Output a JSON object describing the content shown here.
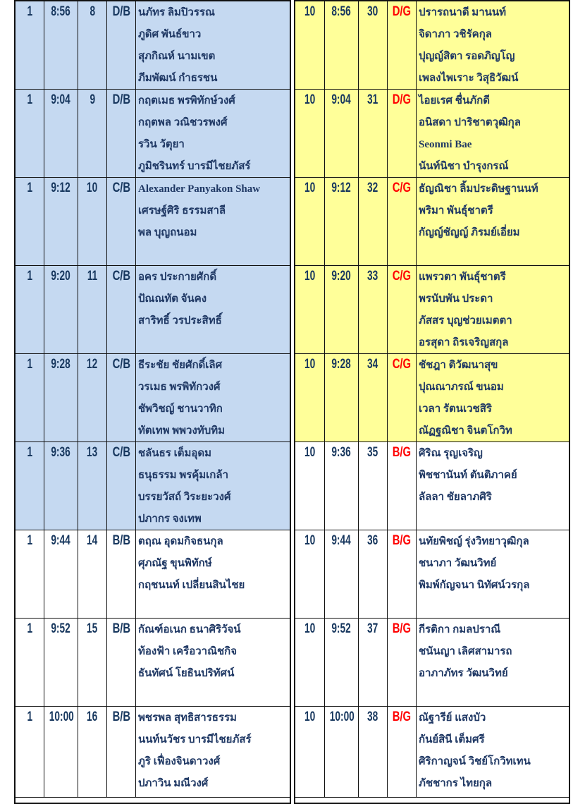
{
  "colors": {
    "blue_band": "#c5d9f1",
    "yellow_band": "#ffff99",
    "white": "#ffffff",
    "text": "#1f3864",
    "girls_category": "#ff0000"
  },
  "left_groups": [
    {
      "tee": "1",
      "time": "8:56",
      "group": "8",
      "category": "D/B",
      "shade": "blue",
      "players": [
        "นภัทร ลิมปิวรรณ",
        "ภูดิศ พันธ์ขาว",
        "สุภกิณห์ นามเขต",
        "ภีมพัฒน์ กำธรชน"
      ]
    },
    {
      "tee": "1",
      "time": "9:04",
      "group": "9",
      "category": "D/B",
      "shade": "blue",
      "players": [
        "กฤตเมธ พรพิทักษ์วงศ์",
        "กฤตพล วณิชวรพงศ์",
        "รวิน วัตุยา",
        "ภูมิชรินทร์ บารมีไชยภัสร์"
      ]
    },
    {
      "tee": "1",
      "time": "9:12",
      "group": "10",
      "category": "C/B",
      "shade": "blue",
      "players": [
        "Alexander Panyakon Shaw",
        "เศรษฐ์ศิริ ธรรมสาลี",
        "พล บุญถนอม"
      ]
    },
    {
      "tee": "1",
      "time": "9:20",
      "group": "11",
      "category": "C/B",
      "shade": "blue",
      "players": [
        "อคร ประกายศักดิ์",
        "ปัณณทัต จันคง",
        "สาริทธิ์ วรประสิทธิ์"
      ]
    },
    {
      "tee": "1",
      "time": "9:28",
      "group": "12",
      "category": "C/B",
      "shade": "blue",
      "players": [
        "ธีระชัย ชัยศักดิ์เลิศ",
        "วรเมธ พรพิทักวงศ์",
        "ชัพวิชญ์ ชานวาทิก",
        "ทัตเทพ พพวงทับทิม"
      ]
    },
    {
      "tee": "1",
      "time": "9:36",
      "group": "13",
      "category": "C/B",
      "shade": "blue",
      "players": [
        "ชลันธร เต็มอุดม",
        "ธนุธรรม พรคุ้มเกล้า",
        "บรรยวัสถ์ วิระยะวงศ์",
        "ปภากร จงเทพ"
      ]
    },
    {
      "tee": "1",
      "time": "9:44",
      "group": "14",
      "category": "B/B",
      "shade": "white",
      "players": [
        "ตฤณ อุดมกิจธนกุล",
        "ศุภณัฐ ขุนพิทักษ์",
        "กฤชนนท์ เปลี่ยนสินไชย"
      ]
    },
    {
      "tee": "1",
      "time": "9:52",
      "group": "15",
      "category": "B/B",
      "shade": "white",
      "players": [
        "กัณฑ์อเนก ธนาศิริวัจน์",
        "ท้องฟ้า เครือวาณิชกิจ",
        "ธันทัศน์ โยธินปริทัศน์"
      ]
    },
    {
      "tee": "1",
      "time": "10:00",
      "group": "16",
      "category": "B/B",
      "shade": "white",
      "players": [
        "พชรพล สุทธิสารธรรม",
        "นนท์นวัชร บารมีไชยภัสร์",
        "ภูริ เฟื่องจินดาวงศ์",
        "ปภาวิน มณีวงศ์"
      ]
    }
  ],
  "right_groups": [
    {
      "tee": "10",
      "time": "8:56",
      "group": "30",
      "category": "D/G",
      "shade": "yellow",
      "players": [
        "ปรารถนาดี มานนท์",
        "จิดาภา วชิรัคกุล",
        "ปุญญ์สิตา รอดภิญโญ",
        "เพลงไพเราะ วิสุธิวัฒน์"
      ]
    },
    {
      "tee": "10",
      "time": "9:04",
      "group": "31",
      "category": "D/G",
      "shade": "yellow",
      "players": [
        "ไอยเรศ ชื่นภักดี",
        "อนิสดา ปาริชาตวุฒิกุล",
        "Seonmi Bae",
        "นันท์นิชา  บำรุงกรณ์"
      ]
    },
    {
      "tee": "10",
      "time": "9:12",
      "group": "32",
      "category": "C/G",
      "shade": "yellow",
      "players": [
        "ธัญณิชา ลิ้มประดิษฐานนท์",
        "พริมา พันธุ์ชาตรี",
        "กัญญ์ชัญญ์ ภิรมย์เอี่ยม"
      ]
    },
    {
      "tee": "10",
      "time": "9:20",
      "group": "33",
      "category": "C/G",
      "shade": "yellow",
      "players": [
        "แพรวตา พันธุ์ชาตรี",
        "พรนับพัน ประดา",
        "ภัสสร บุญช่วยเมตตา",
        "อรสุดา ถิรเจริญสกุล"
      ]
    },
    {
      "tee": "10",
      "time": "9:28",
      "group": "34",
      "category": "C/G",
      "shade": "yellow",
      "players": [
        "ชัชฎา ติวัฒนาสุข",
        "ปุณณาภรณ์ ขนอม",
        "เวลา รัตนเวชสิริ",
        "ณัฏฐณิชา จินตโกวิท"
      ]
    },
    {
      "tee": "10",
      "time": "9:36",
      "group": "35",
      "category": "B/G",
      "shade": "white",
      "players": [
        "ศิริณ รุญเจริญ",
        "พิชชานันท์ ตันติภาคย์",
        "ลัลลา ชัยลาภศิริ"
      ]
    },
    {
      "tee": "10",
      "time": "9:44",
      "group": "36",
      "category": "B/G",
      "shade": "white",
      "players": [
        "นทัยพิชญ์ รุ่งวิทยาวุฒิกุล",
        "ชนาภา วัฒนวิทย์",
        "พิมพ์กัญจนา นิทัศน์วรกุล"
      ]
    },
    {
      "tee": "10",
      "time": "9:52",
      "group": "37",
      "category": "B/G",
      "shade": "white",
      "players": [
        "กีรติกา กมลปราณี",
        "ชนันญา เลิศสามารถ",
        "อาภาภัทร วัฒนวิทย์"
      ]
    },
    {
      "tee": "10",
      "time": "10:00",
      "group": "38",
      "category": "B/G",
      "shade": "white",
      "players": [
        "ณัฐารีย์ แสงบัว",
        "กันย์สินี เต็มศรี",
        "ศิริกาญจน์ วิชย์โกวิทเทน",
        "ภัชชากร ไทยกุล"
      ]
    }
  ]
}
